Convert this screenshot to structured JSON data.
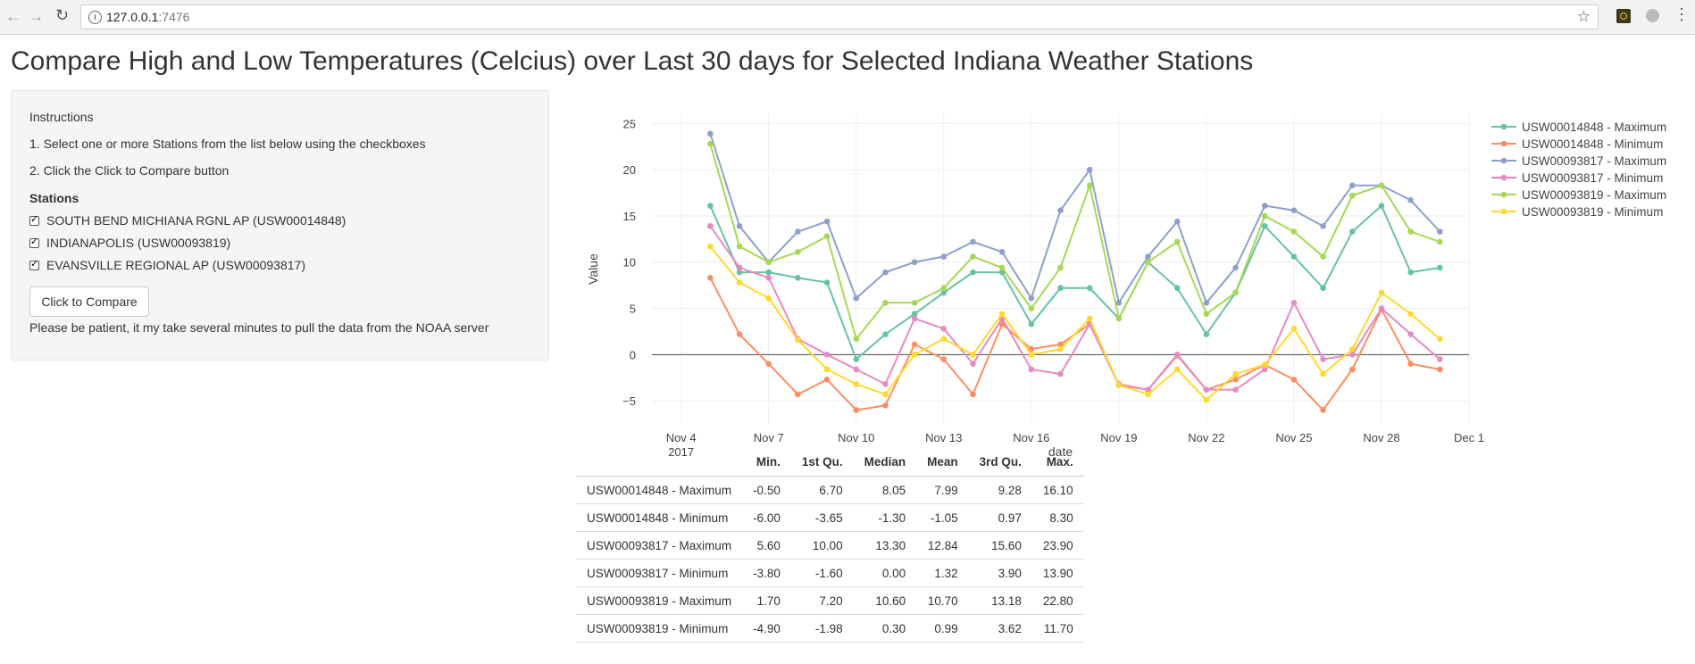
{
  "browser": {
    "url_host": "127.0.0.1",
    "url_port": ":7476"
  },
  "page": {
    "title": "Compare High and Low Temperatures (Celcius) over Last 30 days for Selected Indiana Weather Stations"
  },
  "sidebar": {
    "instructions_heading": "Instructions",
    "step1": "1. Select one or more Stations from the list below using the checkboxes",
    "step2": "2. Click the Click to Compare button",
    "stations_label": "Stations",
    "stations": [
      {
        "label": "SOUTH BEND MICHIANA RGNL AP (USW00014848)",
        "checked": true
      },
      {
        "label": "INDIANAPOLIS (USW00093819)",
        "checked": true
      },
      {
        "label": "EVANSVILLE REGIONAL AP (USW00093817)",
        "checked": true
      }
    ],
    "compare_button": "Click to Compare",
    "note": "Please be patient, it my take several minutes to pull the data from the NOAA server"
  },
  "chart_data": {
    "type": "line",
    "xlabel": "date",
    "ylabel": "Value",
    "ylim": [
      -7.5,
      26
    ],
    "xlim": [
      "2017-11-03",
      "2017-12-01"
    ],
    "x_ticks": [
      "Nov 4\n2017",
      "Nov 7",
      "Nov 10",
      "Nov 13",
      "Nov 16",
      "Nov 19",
      "Nov 22",
      "Nov 25",
      "Nov 28",
      "Dec 1"
    ],
    "y_ticks": [
      -5,
      0,
      5,
      10,
      15,
      20,
      25
    ],
    "zero_line": true,
    "grid": true,
    "legend_position": "top-right",
    "x": [
      "2017-11-05",
      "2017-11-06",
      "2017-11-07",
      "2017-11-08",
      "2017-11-09",
      "2017-11-10",
      "2017-11-11",
      "2017-11-12",
      "2017-11-13",
      "2017-11-14",
      "2017-11-15",
      "2017-11-16",
      "2017-11-17",
      "2017-11-18",
      "2017-11-19",
      "2017-11-20",
      "2017-11-21",
      "2017-11-22",
      "2017-11-23",
      "2017-11-24",
      "2017-11-25",
      "2017-11-26",
      "2017-11-27",
      "2017-11-28",
      "2017-11-29",
      "2017-11-30"
    ],
    "series": [
      {
        "name": "USW00014848 - Maximum",
        "color": "#66c2a5",
        "values": [
          16.1,
          8.9,
          8.9,
          8.3,
          7.8,
          -0.5,
          2.2,
          4.4,
          6.7,
          8.9,
          8.9,
          3.3,
          7.2,
          7.2,
          3.9,
          10.0,
          7.2,
          2.2,
          6.7,
          13.9,
          10.6,
          7.2,
          13.3,
          16.1,
          8.9,
          9.4
        ]
      },
      {
        "name": "USW00014848 - Minimum",
        "color": "#fc8d62",
        "values": [
          8.3,
          2.2,
          -1.0,
          -4.3,
          -2.7,
          -6.0,
          -5.5,
          1.1,
          -0.5,
          -4.3,
          3.3,
          0.6,
          1.1,
          3.3,
          -3.2,
          -3.8,
          -0.1,
          -3.8,
          -2.7,
          -1.1,
          -2.7,
          -6.0,
          -1.6,
          4.9,
          -1.0,
          -1.6
        ]
      },
      {
        "name": "USW00093817 - Maximum",
        "color": "#8da0cb",
        "values": [
          23.9,
          13.9,
          10.0,
          13.3,
          14.4,
          6.1,
          8.9,
          10.0,
          10.6,
          12.2,
          11.1,
          6.1,
          15.6,
          20.0,
          5.6,
          10.6,
          14.4,
          5.6,
          9.4,
          16.1,
          15.6,
          13.9,
          18.3,
          18.3,
          16.7,
          13.3
        ]
      },
      {
        "name": "USW00093817 - Minimum",
        "color": "#e78ac3",
        "values": [
          13.9,
          9.4,
          8.3,
          1.7,
          0.0,
          -1.6,
          -3.2,
          3.9,
          2.8,
          -1.0,
          3.9,
          -1.6,
          -2.1,
          3.3,
          -3.3,
          -3.8,
          0.0,
          -3.8,
          -3.8,
          -1.6,
          5.6,
          -0.5,
          0.0,
          5.0,
          2.2,
          -0.5
        ]
      },
      {
        "name": "USW00093819 - Maximum",
        "color": "#a6d854",
        "values": [
          22.8,
          11.7,
          10.0,
          11.1,
          12.8,
          1.7,
          5.6,
          5.6,
          7.2,
          10.6,
          9.4,
          5.0,
          9.4,
          18.3,
          3.9,
          10.0,
          12.2,
          4.4,
          6.7,
          15.0,
          13.3,
          10.6,
          17.2,
          18.3,
          13.3,
          12.2
        ]
      },
      {
        "name": "USW00093819 - Minimum",
        "color": "#ffd92f",
        "values": [
          11.7,
          7.8,
          6.1,
          1.6,
          -1.6,
          -3.2,
          -4.3,
          0.0,
          1.7,
          0.0,
          4.4,
          0.0,
          0.6,
          3.9,
          -3.3,
          -4.3,
          -1.6,
          -4.9,
          -2.1,
          -1.1,
          2.8,
          -2.1,
          0.6,
          6.7,
          4.4,
          1.7
        ]
      }
    ]
  },
  "stats_table": {
    "headers": [
      "",
      "Min.",
      "1st Qu.",
      "Median",
      "Mean",
      "3rd Qu.",
      "Max."
    ],
    "rows": [
      [
        "USW00014848 - Maximum",
        "-0.50",
        "6.70",
        "8.05",
        "7.99",
        "9.28",
        "16.10"
      ],
      [
        "USW00014848 - Minimum",
        "-6.00",
        "-3.65",
        "-1.30",
        "-1.05",
        "0.97",
        "8.30"
      ],
      [
        "USW00093817 - Maximum",
        "5.60",
        "10.00",
        "13.30",
        "12.84",
        "15.60",
        "23.90"
      ],
      [
        "USW00093817 - Minimum",
        "-3.80",
        "-1.60",
        "0.00",
        "1.32",
        "3.90",
        "13.90"
      ],
      [
        "USW00093819 - Maximum",
        "1.70",
        "7.20",
        "10.60",
        "10.70",
        "13.18",
        "22.80"
      ],
      [
        "USW00093819 - Minimum",
        "-4.90",
        "-1.98",
        "0.30",
        "0.99",
        "3.62",
        "11.70"
      ]
    ]
  }
}
